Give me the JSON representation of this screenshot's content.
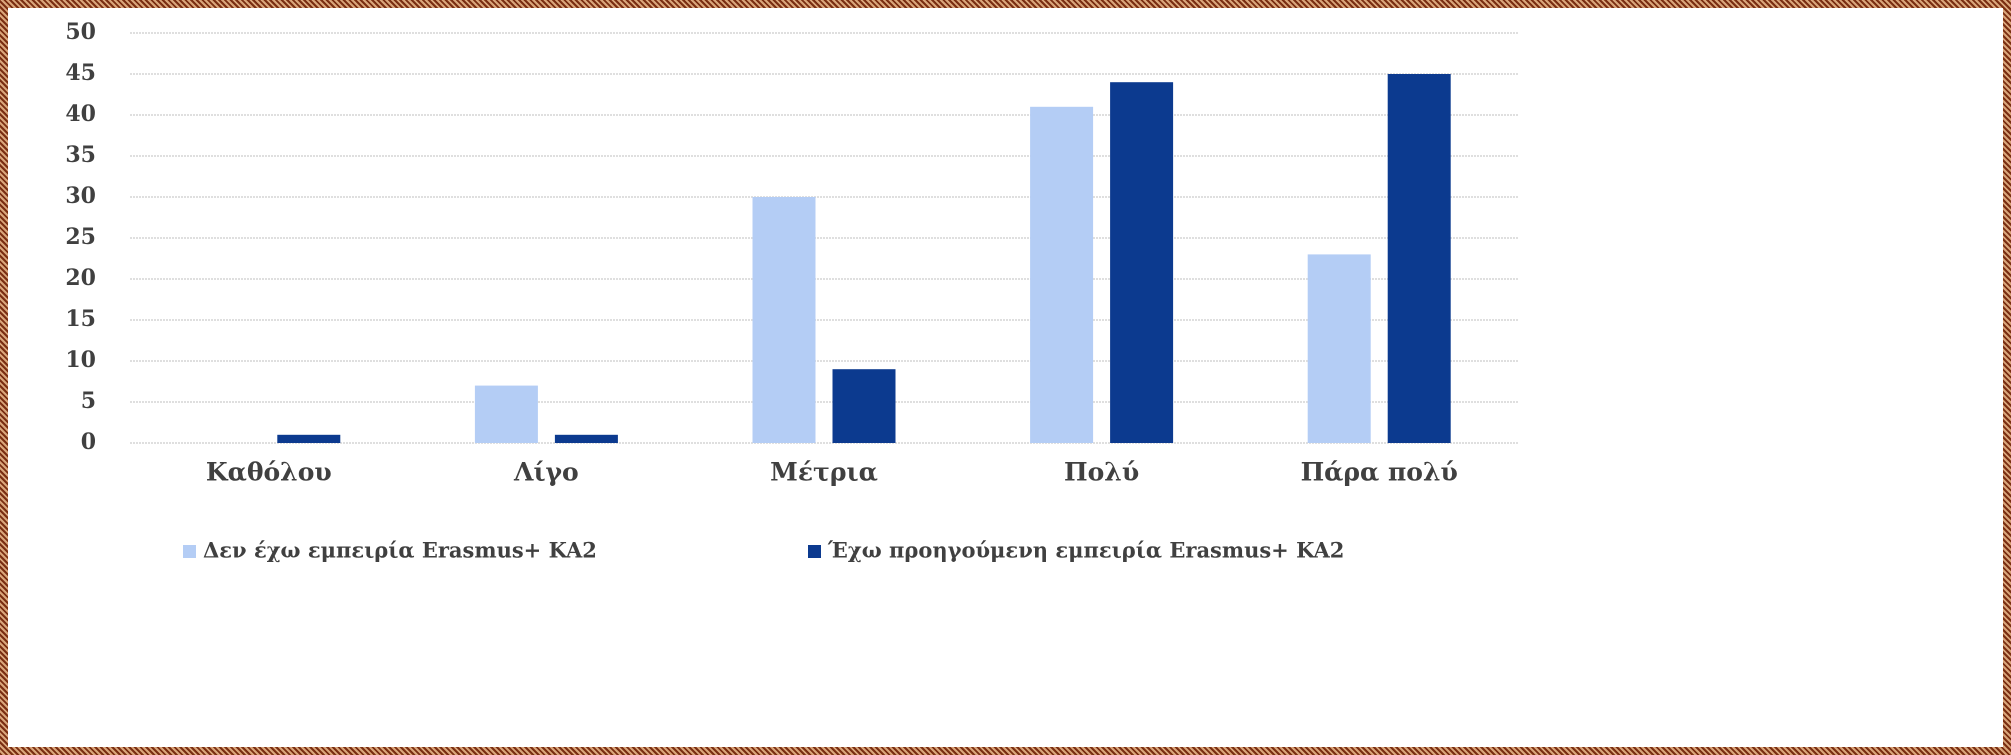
{
  "chart_data": {
    "type": "bar",
    "categories": [
      "Καθόλου",
      "Λίγο",
      "Μέτρια",
      "Πολύ",
      "Πάρα πολύ"
    ],
    "series": [
      {
        "name": "Δεν έχω εμπειρία Erasmus+ KA2",
        "color": "#b4cdf5",
        "values": [
          0,
          7,
          30,
          41,
          23
        ]
      },
      {
        "name": "Έχω προηγούμενη εμπειρία Erasmus+ KA2",
        "color": "#0c3a8f",
        "values": [
          1,
          1,
          9,
          44,
          45
        ]
      }
    ],
    "ylim": [
      0,
      50
    ],
    "yticks": [
      0,
      5,
      10,
      15,
      20,
      25,
      30,
      35,
      40,
      45,
      50
    ],
    "grid": true,
    "legend": "bottom"
  }
}
